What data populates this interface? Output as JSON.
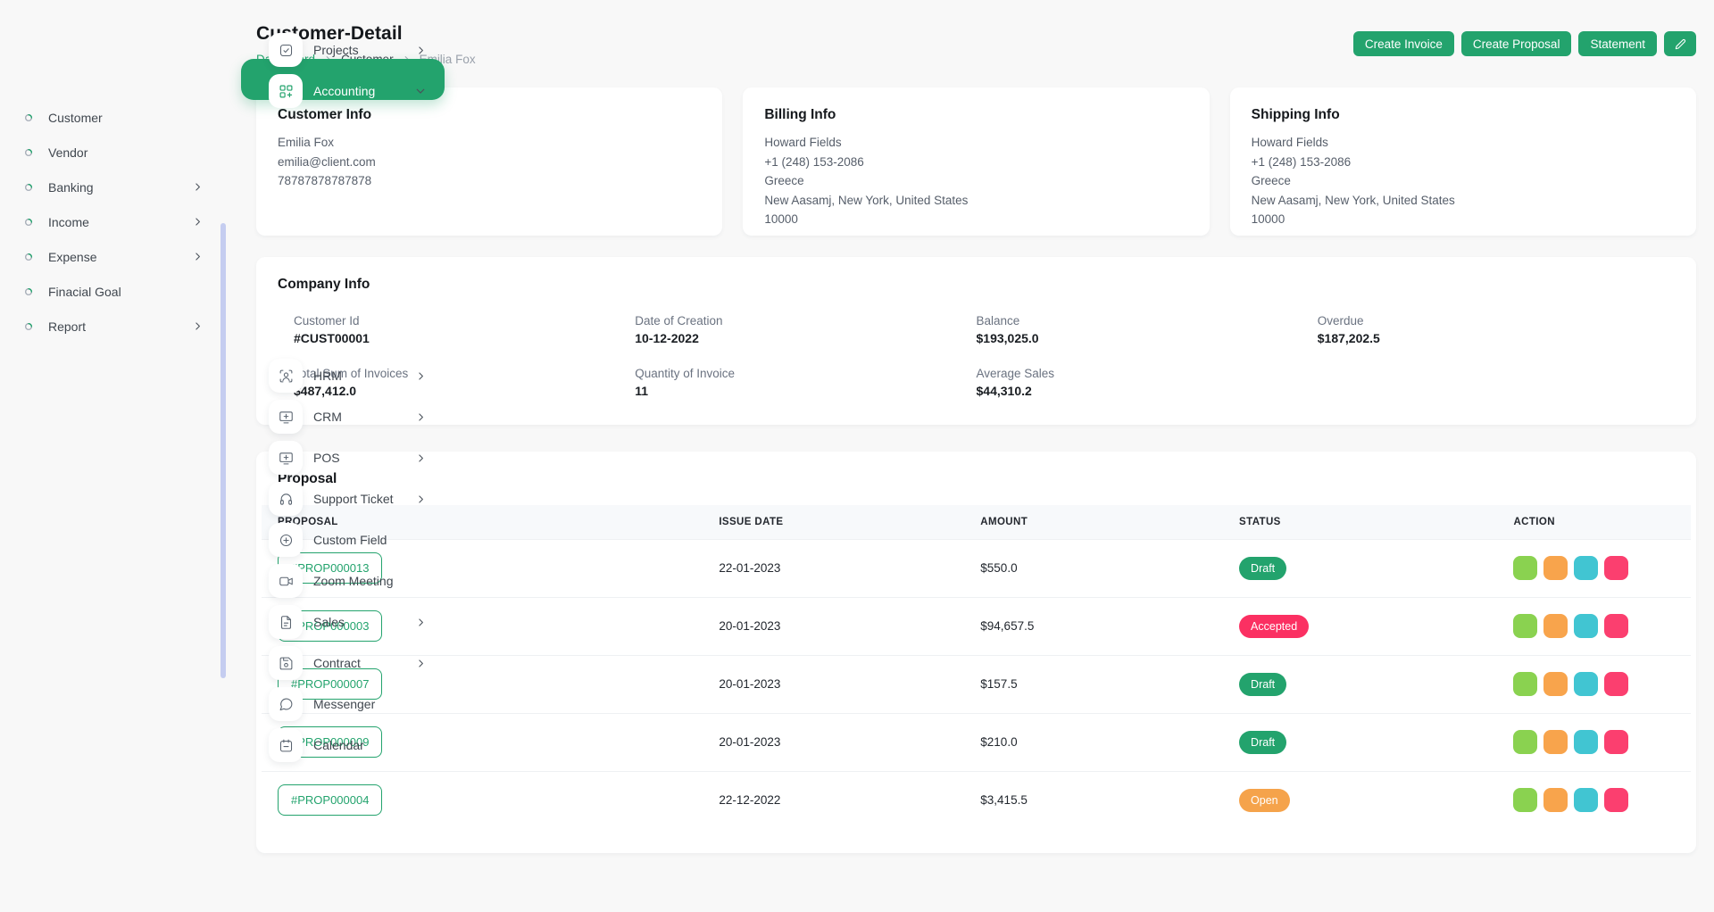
{
  "colors": {
    "primary_green": "#23A36D",
    "lime_action": "#8AD250",
    "orange_action": "#F8A44C",
    "teal_action": "#41C5D2",
    "pink_action": "#FB3F6F",
    "status_draft": "#23A36D",
    "status_accepted": "#FB3062",
    "status_open": "#F5A34B",
    "scrollbar": "#c5cdf0"
  },
  "sidebar": {
    "items": [
      {
        "label": "Projects",
        "icon": "checkbox-icon",
        "type": "main",
        "chevron": "right"
      },
      {
        "label": "Accounting",
        "icon": "grid-plus-icon",
        "type": "main",
        "chevron": "down",
        "active": true
      },
      {
        "label": "Customer",
        "type": "sub"
      },
      {
        "label": "Vendor",
        "type": "sub"
      },
      {
        "label": "Banking",
        "type": "sub",
        "chevron": "right"
      },
      {
        "label": "Income",
        "type": "sub",
        "chevron": "right"
      },
      {
        "label": "Expense",
        "type": "sub",
        "chevron": "right"
      },
      {
        "label": "Finacial Goal",
        "type": "sub"
      },
      {
        "label": "Report",
        "type": "sub",
        "chevron": "right"
      },
      {
        "label": "HRM",
        "icon": "scan-user-icon",
        "type": "main",
        "chevron": "right"
      },
      {
        "label": "CRM",
        "icon": "monitor-plus-icon",
        "type": "main",
        "chevron": "right"
      },
      {
        "label": "POS",
        "icon": "monitor-plus-icon",
        "type": "main",
        "chevron": "right"
      },
      {
        "label": "Support Ticket",
        "icon": "headset-icon",
        "type": "main",
        "chevron": "right"
      },
      {
        "label": "Custom Field",
        "icon": "plus-circle-icon",
        "type": "main"
      },
      {
        "label": "Zoom Meeting",
        "icon": "video-icon",
        "type": "main"
      },
      {
        "label": "Sales",
        "icon": "file-icon",
        "type": "main",
        "chevron": "right"
      },
      {
        "label": "Contract",
        "icon": "save-icon",
        "type": "main",
        "chevron": "right"
      },
      {
        "label": "Messenger",
        "icon": "chat-icon",
        "type": "main"
      },
      {
        "label": "Calendar",
        "icon": "calendar-icon",
        "type": "main"
      }
    ]
  },
  "header": {
    "title": "Customer-Detail",
    "breadcrumb": [
      {
        "label": "Dashboard",
        "style": "link"
      },
      {
        "label": "Customer",
        "style": "current"
      },
      {
        "label": "Emilia Fox",
        "style": "muted"
      }
    ],
    "buttons": [
      "Create Invoice",
      "Create Proposal",
      "Statement"
    ],
    "edit_button_icon": "pencil-icon"
  },
  "info_cards": [
    {
      "title": "Customer Info",
      "lines": [
        "Emilia Fox",
        "emilia@client.com",
        "78787878787878"
      ]
    },
    {
      "title": "Billing Info",
      "lines": [
        "Howard Fields",
        "+1 (248) 153-2086",
        "Greece",
        "New Aasamj, New York, United States",
        "10000"
      ]
    },
    {
      "title": "Shipping Info",
      "lines": [
        "Howard Fields",
        "+1 (248) 153-2086",
        "Greece",
        "New Aasamj, New York, United States",
        "10000"
      ]
    }
  ],
  "company_info": {
    "title": "Company Info",
    "fields": [
      {
        "label": "Customer Id",
        "value": "#CUST00001"
      },
      {
        "label": "Date of Creation",
        "value": "10-12-2022"
      },
      {
        "label": "Balance",
        "value": "$193,025.0"
      },
      {
        "label": "Overdue",
        "value": "$187,202.5"
      },
      {
        "label": "Total Sum of Invoices",
        "value": "$487,412.0"
      },
      {
        "label": "Quantity of Invoice",
        "value": "11"
      },
      {
        "label": "Average Sales",
        "value": "$44,310.2"
      }
    ]
  },
  "proposal": {
    "title": "Proposal",
    "columns": [
      "PROPOSAL",
      "ISSUE DATE",
      "AMOUNT",
      "STATUS",
      "ACTION"
    ],
    "rows": [
      {
        "id": "#PROP000013",
        "issue_date": "22-01-2023",
        "amount": "$550.0",
        "status": "Draft",
        "status_color": "#23A36D",
        "actions": [
          {
            "action": "view",
            "icon": "eye-icon",
            "color": "#8AD250"
          },
          {
            "action": "preview",
            "icon": "eye-icon",
            "color": "#F8A44C"
          },
          {
            "action": "edit",
            "icon": "pencil-icon",
            "color": "#41C5D2"
          },
          {
            "action": "delete",
            "icon": "trash-icon",
            "color": "#FB3F6F"
          }
        ]
      },
      {
        "id": "#PROP000003",
        "issue_date": "20-01-2023",
        "amount": "$94,657.5",
        "status": "Accepted",
        "status_color": "#FB3062",
        "actions": [
          {
            "action": "view",
            "icon": "eye-icon",
            "color": "#8AD250"
          },
          {
            "action": "preview",
            "icon": "eye-icon",
            "color": "#F8A44C"
          },
          {
            "action": "edit",
            "icon": "pencil-icon",
            "color": "#41C5D2"
          },
          {
            "action": "delete",
            "icon": "trash-icon",
            "color": "#FB3F6F"
          }
        ]
      },
      {
        "id": "#PROP000007",
        "issue_date": "20-01-2023",
        "amount": "$157.5",
        "status": "Draft",
        "status_color": "#23A36D",
        "actions": [
          {
            "action": "view",
            "icon": "eye-icon",
            "color": "#8AD250"
          },
          {
            "action": "preview",
            "icon": "eye-icon",
            "color": "#F8A44C"
          },
          {
            "action": "edit",
            "icon": "pencil-icon",
            "color": "#41C5D2"
          },
          {
            "action": "delete",
            "icon": "trash-icon",
            "color": "#FB3F6F"
          }
        ]
      },
      {
        "id": "#PROP000009",
        "issue_date": "20-01-2023",
        "amount": "$210.0",
        "status": "Draft",
        "status_color": "#23A36D",
        "actions": [
          {
            "action": "convert",
            "icon": "repeat-icon",
            "color": "#8AD250"
          },
          {
            "action": "preview",
            "icon": "eye-icon",
            "color": "#F8A44C"
          },
          {
            "action": "edit",
            "icon": "pencil-icon",
            "color": "#41C5D2"
          },
          {
            "action": "delete",
            "icon": "trash-icon",
            "color": "#FB3F6F"
          }
        ]
      },
      {
        "id": "#PROP000004",
        "issue_date": "22-12-2022",
        "amount": "$3,415.5",
        "status": "Open",
        "status_color": "#F5A34B",
        "actions": [
          {
            "action": "view",
            "icon": "eye-icon",
            "color": "#8AD250"
          },
          {
            "action": "preview",
            "icon": "eye-icon",
            "color": "#F8A44C"
          },
          {
            "action": "edit",
            "icon": "pencil-icon",
            "color": "#41C5D2"
          },
          {
            "action": "delete",
            "icon": "trash-icon",
            "color": "#FB3F6F"
          }
        ]
      }
    ]
  }
}
